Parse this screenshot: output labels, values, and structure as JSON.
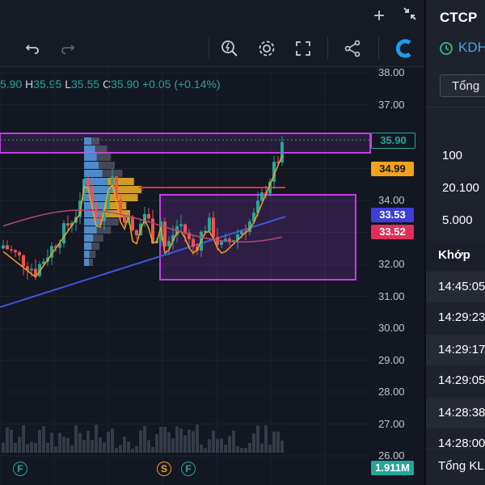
{
  "ohlc": {
    "open_fragment": "5.90",
    "h_key": "H",
    "high": "35.95",
    "l_key": "L",
    "low": "35.55",
    "c_key": "C",
    "close": "35.90",
    "change": "+0.05 (+0.14%)"
  },
  "price_axis": [
    "38.00",
    "37.00",
    "36.00",
    "35.00",
    "34.00",
    "33.00",
    "32.00",
    "31.00",
    "30.00",
    "29.00",
    "28.00",
    "27.00",
    "26.00"
  ],
  "price_tags": {
    "last": "35.90",
    "level_orange": "34.99",
    "level_blue": "33.53",
    "level_red": "33.52",
    "volume": "1.911M"
  },
  "markers": [
    "F",
    "S",
    "F"
  ],
  "colors": {
    "up": "#26a69a",
    "down": "#ef5350",
    "accent_magenta": "#c040e0",
    "orange": "#f2a21b",
    "blue": "#3d59d6",
    "red": "#e0303a"
  },
  "right_panel": {
    "title": "CTCP",
    "code": "KDH",
    "button": "Tổng",
    "levels": [
      "100",
      "20.100",
      "5.000"
    ],
    "section": "Khớp",
    "times": [
      "14:45:05",
      "14:29:23",
      "14:29:17",
      "14:29:05",
      "14:28:38",
      "14:28:00"
    ],
    "footer": "Tổng KL"
  },
  "icons": [
    "plus-icon",
    "collapse-icon",
    "undo-icon",
    "redo-icon",
    "bulb-search-icon",
    "gear-icon",
    "fullscreen-icon",
    "share-icon",
    "brand-logo-icon",
    "clock-icon"
  ]
}
